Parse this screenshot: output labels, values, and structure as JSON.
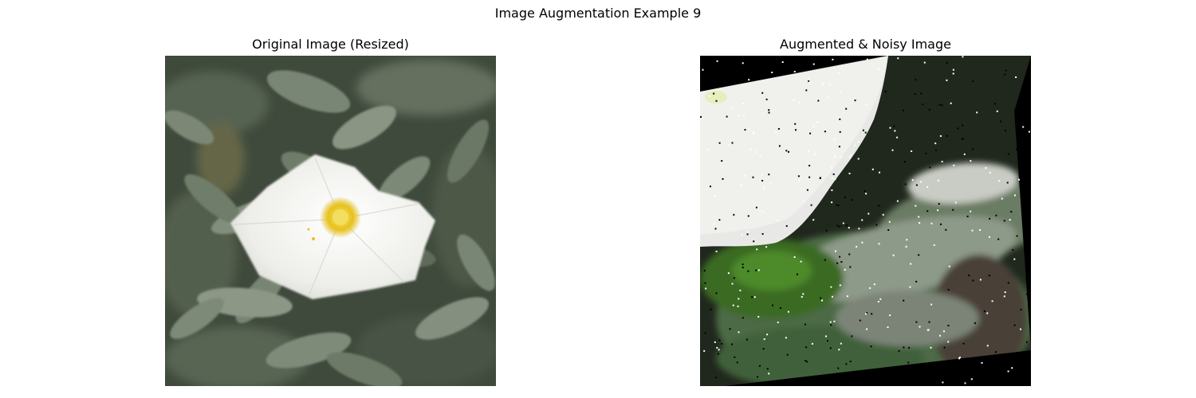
{
  "figure": {
    "suptitle": "Image Augmentation Example 9"
  },
  "panels": [
    {
      "title": "Original Image (Resized)",
      "content": "photo of a white bindweed flower with yellow center among grey-green leaves",
      "axis": "off"
    },
    {
      "title": "Augmented & Noisy Image",
      "content": "rotated, zoomed crop of the white flower over green leaves with black border and salt-and-pepper noise",
      "axis": "off"
    }
  ],
  "colors": {
    "leaf_dark": "#3f4a3c",
    "leaf_mid": "#6f7c6a",
    "leaf_light": "#9aa596",
    "petal": "#f2f2ef",
    "flower_center": "#e8c21a",
    "background": "#ffffff",
    "rotation_border": "#000000"
  }
}
